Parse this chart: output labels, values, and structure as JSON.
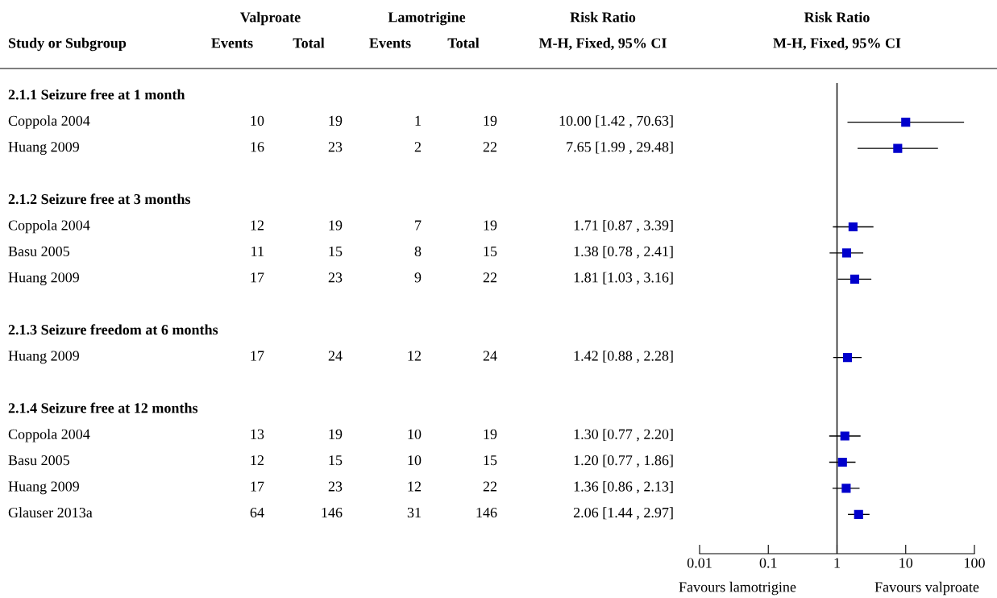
{
  "chart_data": [
    {
      "type": "other",
      "ylabel": "Study or Subgroup",
      "annotations": [
        "Valproate",
        "Lamotrigine",
        "Risk Ratio"
      ],
      "categories": [
        "Events",
        "Total",
        "Events",
        "Total",
        "M-H, Fixed, 95% CI"
      ],
      "y_categories": [
        "2.1.1 Seizure free at 1 month",
        "Coppola 2004",
        "Huang 2009",
        "2.1.2 Seizure free at 3 months",
        "Coppola 2004",
        "Basu 2005",
        "Huang 2009",
        "2.1.3 Seizure freedom at 6 months",
        "Huang 2009",
        "2.1.4 Seizure free at 12 months",
        "Coppola 2004",
        "Basu 2005",
        "Huang 2009",
        "Glauser 2013a"
      ],
      "cell_labels": [
        [
          null,
          null,
          null,
          null,
          null
        ],
        [
          "10",
          "19",
          "1",
          "19",
          "10.00 [1.42 , 70.63]"
        ],
        [
          "16",
          "23",
          "2",
          "22",
          "7.65 [1.99 , 29.48]"
        ],
        [
          null,
          null,
          null,
          null,
          null
        ],
        [
          "12",
          "19",
          "7",
          "19",
          "1.71 [0.87 , 3.39]"
        ],
        [
          "11",
          "15",
          "8",
          "15",
          "1.38 [0.78 , 2.41]"
        ],
        [
          "17",
          "23",
          "9",
          "22",
          "1.81 [1.03 , 3.16]"
        ],
        [
          null,
          null,
          null,
          null,
          null
        ],
        [
          "17",
          "24",
          "12",
          "24",
          "1.42 [0.88 , 2.28]"
        ],
        [
          null,
          null,
          null,
          null,
          null
        ],
        [
          "13",
          "19",
          "10",
          "19",
          "1.30 [0.77 , 2.20]"
        ],
        [
          "12",
          "15",
          "10",
          "15",
          "1.20 [0.77 , 1.86]"
        ],
        [
          "17",
          "23",
          "12",
          "22",
          "1.36 [0.86 , 2.13]"
        ],
        [
          "64",
          "146",
          "31",
          "146",
          "2.06 [1.44 , 2.97]"
        ]
      ]
    },
    {
      "type": "scatter",
      "orientation": "horizontal",
      "title": "Risk Ratio",
      "subtitle": "M-H, Fixed, 95% CI",
      "annotations": [
        "Favours lamotrigine",
        "Favours valproate"
      ],
      "categories": [
        null,
        null,
        null,
        null,
        null,
        null,
        null,
        null,
        null,
        null,
        null,
        null,
        null,
        null,
        null,
        null,
        null,
        null
      ],
      "values": [
        null,
        10.0,
        7.65,
        null,
        null,
        1.71,
        1.38,
        1.81,
        null,
        null,
        1.42,
        null,
        null,
        1.3,
        1.2,
        1.36,
        2.06,
        null
      ],
      "errors": [
        null,
        [
          1.42,
          70.63
        ],
        [
          1.99,
          29.48
        ],
        null,
        null,
        [
          0.87,
          3.39
        ],
        [
          0.78,
          2.41
        ],
        [
          1.03,
          3.16
        ],
        null,
        null,
        [
          0.88,
          2.28
        ],
        null,
        null,
        [
          0.77,
          2.2
        ],
        [
          0.77,
          1.86
        ],
        [
          0.86,
          2.13
        ],
        [
          1.44,
          2.97
        ],
        null
      ],
      "color": "#0000cc",
      "marker": "square",
      "log": "x",
      "xlim": [
        0.01,
        100
      ],
      "xticks": [
        0.01,
        0.1,
        1,
        10,
        100
      ],
      "tick_labels": "x",
      "ref_lines": [
        {
          "axis": "x",
          "value": 1,
          "color": "#000000"
        }
      ]
    }
  ]
}
